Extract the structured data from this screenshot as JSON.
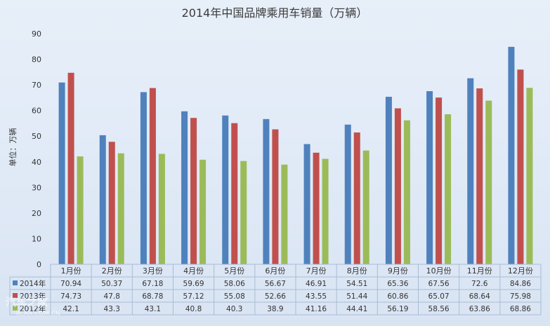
{
  "chart_data": {
    "type": "bar",
    "title": "2014年中国品牌乘用车销量（万辆）",
    "ylabel": "单位：万辆",
    "xlabel": "",
    "ylim": [
      0,
      90
    ],
    "yticks": [
      0,
      10,
      20,
      30,
      40,
      50,
      60,
      70,
      80,
      90
    ],
    "grid": false,
    "legend": "data-table-left",
    "categories": [
      "1月份",
      "2月份",
      "3月份",
      "4月份",
      "5月份",
      "6月份",
      "7月份",
      "8月份",
      "9月份",
      "10月份",
      "11月份",
      "12月份"
    ],
    "series": [
      {
        "name": "2014年",
        "color": "#4f81bd",
        "values": [
          70.94,
          50.37,
          67.18,
          59.69,
          58.06,
          56.67,
          46.91,
          54.51,
          65.36,
          67.56,
          72.6,
          84.86
        ]
      },
      {
        "name": "2013年",
        "color": "#c0504d",
        "values": [
          74.73,
          47.8,
          68.78,
          57.12,
          55.08,
          52.66,
          43.55,
          51.44,
          60.86,
          65.07,
          68.64,
          75.98
        ]
      },
      {
        "name": "2012年",
        "color": "#9bbb59",
        "values": [
          42.1,
          43.3,
          43.1,
          40.8,
          40.3,
          38.9,
          41.16,
          44.41,
          56.19,
          58.56,
          63.86,
          68.86
        ]
      }
    ]
  },
  "watermark": {
    "main": "汽车之家",
    "sub": "XCAR.COM.CN"
  }
}
